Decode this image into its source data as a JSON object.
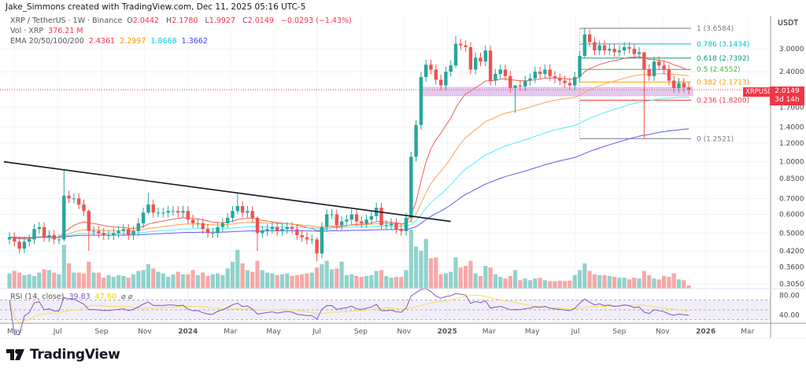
{
  "credit": "Jake_Simmons created with TradingView.com, Dec 11, 2025 05:16 UTC-5",
  "legend": {
    "symbol": "XRP / TetherUS · 1W · Binance",
    "o_label": "O",
    "o": "2.0442",
    "h_label": "H",
    "h": "2.1780",
    "l_label": "L",
    "l": "1.9927",
    "c_label": "C",
    "c": "2.0149",
    "change": "−0.0293 (−1.43%)",
    "vol_label": "Vol · XRP",
    "vol": "376.21 M",
    "ema_label": "EMA 20/50/100/200",
    "ema20": "2.4361",
    "ema50": "2.2997",
    "ema100": "1.8668",
    "ema200": "1.3662"
  },
  "rsi_legend": {
    "label": "RSI (14, close)",
    "rsi": "39.83",
    "rsi_ma": "47.60",
    "icons": "⌀ ⌀"
  },
  "axis": {
    "currency": "USDT"
  },
  "last_price": {
    "symbol": "XRPUSDT",
    "price": "2.0149",
    "countdown": "3d 14h"
  },
  "logo": {
    "text": "TradingView"
  },
  "colors": {
    "up": "#26a69a",
    "down": "#ef5350",
    "ema20": "#f45b5b",
    "ema50": "#ffa04d",
    "ema100": "#4ff0f5",
    "ema200": "#5c5cf5",
    "rsi": "#7e57c2",
    "rsi_ma": "#f5e050",
    "trendline": "#131722",
    "zone": "#b36bd6"
  },
  "chart_data": {
    "type": "candlestick",
    "interval": "1W",
    "x_start": "2023-04-24",
    "y_scale": "log",
    "ylim": [
      0.29,
      4.0
    ],
    "grid": true,
    "price_ticks": [
      "3.0000",
      "2.4000",
      "1.7000",
      "1.4000",
      "1.2000",
      "1.0000",
      "0.8500",
      "0.7000",
      "0.6000",
      "0.5000",
      "0.4200",
      "0.3600",
      "0.3050"
    ],
    "time_ticks": [
      {
        "label": "May",
        "date": "2023-05-01"
      },
      {
        "label": "Jul",
        "date": "2023-07-01"
      },
      {
        "label": "Sep",
        "date": "2023-09-01"
      },
      {
        "label": "Nov",
        "date": "2023-11-01"
      },
      {
        "label": "2024",
        "date": "2024-01-01",
        "bold": true
      },
      {
        "label": "Mar",
        "date": "2024-03-01"
      },
      {
        "label": "May",
        "date": "2024-05-01"
      },
      {
        "label": "Jul",
        "date": "2024-07-01"
      },
      {
        "label": "Sep",
        "date": "2024-09-01"
      },
      {
        "label": "Nov",
        "date": "2024-11-01"
      },
      {
        "label": "2025",
        "date": "2025-01-01",
        "bold": true
      },
      {
        "label": "Mar",
        "date": "2025-03-01"
      },
      {
        "label": "May",
        "date": "2025-05-01"
      },
      {
        "label": "Jul",
        "date": "2025-07-01"
      },
      {
        "label": "Sep",
        "date": "2025-09-01"
      },
      {
        "label": "Nov",
        "date": "2025-11-01"
      },
      {
        "label": "2026",
        "date": "2026-01-01",
        "bold": true
      },
      {
        "label": "Mar",
        "date": "2026-03-01"
      }
    ],
    "first_open": 0.47,
    "close": [
      0.48,
      0.46,
      0.43,
      0.46,
      0.47,
      0.52,
      0.53,
      0.48,
      0.49,
      0.47,
      0.47,
      0.72,
      0.7,
      0.7,
      0.66,
      0.62,
      0.51,
      0.51,
      0.5,
      0.49,
      0.49,
      0.5,
      0.51,
      0.52,
      0.49,
      0.51,
      0.55,
      0.61,
      0.66,
      0.61,
      0.61,
      0.61,
      0.62,
      0.62,
      0.61,
      0.62,
      0.57,
      0.55,
      0.55,
      0.52,
      0.5,
      0.5,
      0.53,
      0.55,
      0.58,
      0.62,
      0.65,
      0.61,
      0.62,
      0.58,
      0.5,
      0.51,
      0.52,
      0.53,
      0.51,
      0.52,
      0.53,
      0.52,
      0.49,
      0.48,
      0.47,
      0.47,
      0.41,
      0.53,
      0.6,
      0.6,
      0.54,
      0.56,
      0.57,
      0.6,
      0.56,
      0.55,
      0.57,
      0.59,
      0.64,
      0.54,
      0.54,
      0.55,
      0.52,
      0.51,
      0.58,
      1.05,
      1.43,
      2.28,
      2.57,
      2.45,
      2.22,
      2.1,
      2.4,
      2.55,
      3.15,
      3.1,
      3.05,
      2.45,
      2.75,
      2.65,
      2.95,
      2.2,
      2.35,
      2.45,
      2.3,
      2.05,
      2.1,
      2.08,
      2.2,
      2.25,
      2.4,
      2.35,
      2.45,
      2.3,
      2.25,
      2.2,
      2.15,
      2.1,
      2.28,
      2.8,
      3.45,
      3.2,
      2.95,
      3.1,
      2.95,
      3.0,
      2.9,
      2.95,
      3.05,
      3.0,
      2.85,
      2.9,
      2.45,
      2.3,
      2.65,
      2.55,
      2.45,
      2.2,
      2.05,
      2.15,
      2.06,
      2.0149
    ],
    "wicks": {
      "11": [
        0.93,
        0.46
      ],
      "16": [
        0.63,
        0.42
      ],
      "28": [
        0.74,
        0.6
      ],
      "46": [
        0.74,
        0.6
      ],
      "50": [
        0.59,
        0.42
      ],
      "62": [
        0.48,
        0.38
      ],
      "90": [
        3.4,
        2.5
      ],
      "102": [
        2.1,
        1.61
      ],
      "116": [
        3.66,
        2.75
      ],
      "128": [
        2.9,
        1.2521
      ]
    },
    "volume_millions": [
      1800,
      2100,
      1900,
      1600,
      1700,
      1500,
      1900,
      2300,
      2200,
      1900,
      1700,
      5200,
      3000,
      1900,
      1900,
      1800,
      3200,
      1900,
      1900,
      1300,
      1600,
      1400,
      1600,
      1500,
      1300,
      1700,
      2100,
      2200,
      2900,
      2400,
      2000,
      1800,
      1400,
      1700,
      2000,
      1700,
      1700,
      2200,
      1600,
      1900,
      1500,
      1700,
      1800,
      1600,
      2400,
      3200,
      4600,
      3000,
      2200,
      2000,
      3300,
      2200,
      1900,
      1800,
      1600,
      1700,
      1800,
      1500,
      1600,
      1700,
      1800,
      1900,
      2500,
      2900,
      3300,
      2300,
      2400,
      3200,
      1600,
      1700,
      1500,
      1400,
      1500,
      1600,
      2100,
      2200,
      1500,
      1300,
      1400,
      1400,
      2200,
      7000,
      5000,
      4500,
      5900,
      3600,
      3700,
      1700,
      1800,
      2000,
      3700,
      2500,
      2700,
      3300,
      1800,
      1500,
      2700,
      2500,
      1700,
      1400,
      1200,
      1500,
      2200,
      1000,
      1200,
      1000,
      1200,
      1300,
      1000,
      900,
      900,
      950,
      900,
      950,
      1600,
      2200,
      3000,
      2100,
      1700,
      1600,
      1600,
      1500,
      1400,
      1300,
      1300,
      1100,
      1300,
      1200,
      2100,
      1600,
      1200,
      1100,
      1500,
      1400,
      1800,
      1100,
      1000,
      376
    ],
    "ema_periods": [
      20,
      50,
      100,
      200
    ],
    "rsi": {
      "period": 14,
      "ma_period": 14,
      "levels": [
        70,
        50,
        30
      ],
      "ticks": [
        "80.00",
        "40.00"
      ]
    },
    "trendline": {
      "from": {
        "date": "2023-04-24",
        "price": 1.0
      },
      "to": {
        "date": "2025-01-06",
        "price": 0.56
      }
    },
    "zone": {
      "from_date": "2024-11-25",
      "low": 1.9,
      "high": 2.06
    },
    "fib": {
      "from_date": "2025-07-07",
      "levels": [
        {
          "label": "1 (3.6584)",
          "price": 3.6584,
          "color": "#787b86"
        },
        {
          "label": "0.786 (3.1434)",
          "price": 3.1434,
          "color": "#00bcd4"
        },
        {
          "label": "0.618 (2.7392)",
          "price": 2.7392,
          "color": "#089981"
        },
        {
          "label": "0.5 (2.4552)",
          "price": 2.4552,
          "color": "#4caf50"
        },
        {
          "label": "0.382 (2.1713)",
          "price": 2.1713,
          "color": "#ff9800"
        },
        {
          "label": "0.236 (1.8200)",
          "price": 1.82,
          "color": "#f23645"
        },
        {
          "label": "0 (1.2521)",
          "price": 1.2521,
          "color": "#787b86"
        }
      ]
    }
  }
}
